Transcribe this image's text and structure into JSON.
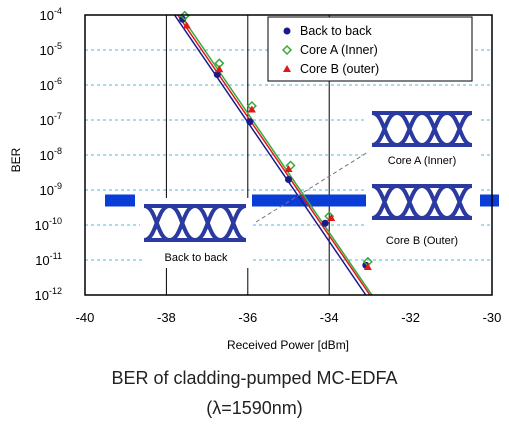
{
  "chart_data": {
    "type": "scatter",
    "xlabel": "Received Power [dBm]",
    "ylabel": "BER",
    "xlim": [
      -40,
      -30
    ],
    "ylim_exponent": [
      -12,
      -4
    ],
    "y_scale": "log",
    "x_ticks": [
      "-40",
      "-38",
      "-36",
      "-34",
      "-32",
      "-30"
    ],
    "y_ticks": [
      {
        "base": "10",
        "exp": "-4",
        "value": -4
      },
      {
        "base": "10",
        "exp": "-5",
        "value": -5
      },
      {
        "base": "10",
        "exp": "-6",
        "value": -6
      },
      {
        "base": "10",
        "exp": "-7",
        "value": -7
      },
      {
        "base": "10",
        "exp": "-8",
        "value": -8
      },
      {
        "base": "10",
        "exp": "-9",
        "value": -9
      },
      {
        "base": "10",
        "exp": "-10",
        "value": -10
      },
      {
        "base": "10",
        "exp": "-11",
        "value": -11
      },
      {
        "base": "10",
        "exp": "-12",
        "value": -12
      }
    ],
    "grid": "horizontal dashed cyan lines at each decade; vertical solid lines at -38, -36, -34",
    "threshold_band": {
      "ber_exponent": -9.3,
      "color": "#0a3cd6"
    },
    "legend_position": "top-right",
    "series": [
      {
        "name": "Back to back",
        "color": "#1a1a8c",
        "marker": "circle",
        "points": [
          {
            "x": -37.6,
            "log_ber": -4.12
          },
          {
            "x": -36.75,
            "log_ber": -5.7
          },
          {
            "x": -35.95,
            "log_ber": -7.05
          },
          {
            "x": -35.0,
            "log_ber": -8.7
          },
          {
            "x": -34.1,
            "log_ber": -9.95
          },
          {
            "x": -33.1,
            "log_ber": -11.15
          }
        ],
        "fit": {
          "x1": -37.8,
          "y1": -4.0,
          "x2": -33.1,
          "y2": -12.0
        }
      },
      {
        "name": "Core A (Inner)",
        "color": "#3aa83a",
        "marker": "diamond-open",
        "points": [
          {
            "x": -37.55,
            "log_ber": -4.02
          },
          {
            "x": -36.7,
            "log_ber": -5.38
          },
          {
            "x": -35.9,
            "log_ber": -6.6
          },
          {
            "x": -34.95,
            "log_ber": -8.3
          },
          {
            "x": -34.0,
            "log_ber": -9.75
          },
          {
            "x": -33.05,
            "log_ber": -11.05
          }
        ],
        "fit": {
          "x1": -37.65,
          "y1": -4.0,
          "x2": -32.95,
          "y2": -12.0
        }
      },
      {
        "name": "Core B (outer)",
        "color": "#e01818",
        "marker": "triangle",
        "points": [
          {
            "x": -37.5,
            "log_ber": -4.3
          },
          {
            "x": -36.7,
            "log_ber": -5.55
          },
          {
            "x": -35.9,
            "log_ber": -6.7
          },
          {
            "x": -35.0,
            "log_ber": -8.4
          },
          {
            "x": -33.95,
            "log_ber": -9.8
          },
          {
            "x": -33.05,
            "log_ber": -11.2
          }
        ],
        "fit": {
          "x1": -37.72,
          "y1": -4.0,
          "x2": -33.0,
          "y2": -12.0
        }
      }
    ],
    "eye_diagrams": [
      {
        "label": "Back to back"
      },
      {
        "label": "Core A (Inner)"
      },
      {
        "label": "Core B (Outer)"
      }
    ]
  },
  "caption": {
    "line1": "BER of cladding-pumped MC-EDFA",
    "line2": "(λ=1590nm)"
  }
}
